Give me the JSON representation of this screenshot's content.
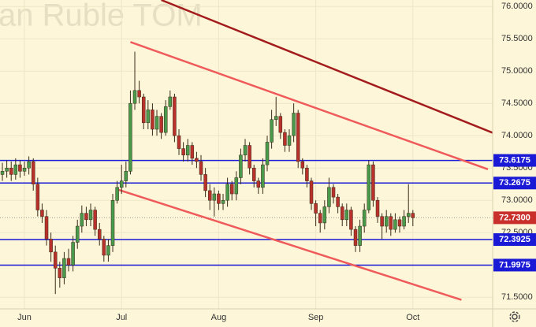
{
  "chart_data": {
    "type": "candlestick",
    "title": "an Ruble TOM",
    "open": [
      73.4,
      73.45,
      73.5,
      73.4,
      73.55,
      73.45,
      73.5,
      73.6,
      73.25,
      72.85,
      72.75,
      72.4,
      72.2,
      71.95,
      71.8,
      72.1,
      72.0,
      72.35,
      72.6,
      72.8,
      72.7,
      72.85,
      72.55,
      72.4,
      72.15,
      72.3,
      73.0,
      73.2,
      73.3,
      73.45,
      74.5,
      74.7,
      74.6,
      74.2,
      74.4,
      74.1,
      74.3,
      74.05,
      74.45,
      74.6,
      74.0,
      73.8,
      73.7,
      73.85,
      73.65,
      73.6,
      73.4,
      73.15,
      73.0,
      73.1,
      72.95,
      73.0,
      73.25,
      73.1,
      73.35,
      73.7,
      73.85,
      73.5,
      73.3,
      73.2,
      73.55,
      73.9,
      74.25,
      74.3,
      74.05,
      73.85,
      74.0,
      74.35,
      73.6,
      73.5,
      73.3,
      72.95,
      72.8,
      72.65,
      72.9,
      73.2,
      73.05,
      72.9,
      72.7,
      72.85,
      72.55,
      72.3,
      72.6,
      72.85,
      73.55,
      73.0,
      72.75,
      72.6,
      72.75,
      72.55,
      72.7,
      72.6,
      72.75,
      72.8
    ],
    "high": [
      73.58,
      73.62,
      73.6,
      73.65,
      73.62,
      73.6,
      73.68,
      73.65,
      73.35,
      72.95,
      72.85,
      72.5,
      72.3,
      72.05,
      72.2,
      72.25,
      72.45,
      72.7,
      72.92,
      72.9,
      72.95,
      72.9,
      72.65,
      72.45,
      72.4,
      73.1,
      73.3,
      73.55,
      73.6,
      74.7,
      75.3,
      74.85,
      74.65,
      74.55,
      74.5,
      74.4,
      74.35,
      74.55,
      74.7,
      74.65,
      74.1,
      73.9,
      73.95,
      73.9,
      73.75,
      73.7,
      73.5,
      73.25,
      73.2,
      73.15,
      73.1,
      73.35,
      73.3,
      73.45,
      73.8,
      73.95,
      73.9,
      73.55,
      73.35,
      73.65,
      74.0,
      74.4,
      74.6,
      74.35,
      74.1,
      74.1,
      74.5,
      74.4,
      73.65,
      73.55,
      73.35,
      73.0,
      72.85,
      73.0,
      73.35,
      73.25,
      73.1,
      72.95,
      72.95,
      72.9,
      72.6,
      72.7,
      72.95,
      73.62,
      73.6,
      73.05,
      72.8,
      72.85,
      72.8,
      72.8,
      72.75,
      72.85,
      73.25,
      72.85
    ],
    "low": [
      73.3,
      73.35,
      73.3,
      73.32,
      73.35,
      73.38,
      73.4,
      73.15,
      72.75,
      72.65,
      72.3,
      72.05,
      71.55,
      71.65,
      71.7,
      71.9,
      71.9,
      72.25,
      72.5,
      72.6,
      72.6,
      72.45,
      72.3,
      72.05,
      72.05,
      72.2,
      72.95,
      73.1,
      73.2,
      73.4,
      74.4,
      74.5,
      74.1,
      74.1,
      74.0,
      74.0,
      73.95,
      74.0,
      74.4,
      73.9,
      73.7,
      73.6,
      73.6,
      73.55,
      73.5,
      73.3,
      73.05,
      72.85,
      72.75,
      72.85,
      72.85,
      72.9,
      73.0,
      73.0,
      73.25,
      73.6,
      73.4,
      73.2,
      73.1,
      73.1,
      73.45,
      73.8,
      74.15,
      73.95,
      73.75,
      73.75,
      73.9,
      73.5,
      73.4,
      73.2,
      72.85,
      72.6,
      72.5,
      72.55,
      72.8,
      72.95,
      72.8,
      72.6,
      72.6,
      72.45,
      72.2,
      72.2,
      72.5,
      72.8,
      72.9,
      72.65,
      72.4,
      72.5,
      72.45,
      72.5,
      72.5,
      72.55,
      72.65,
      72.6
    ],
    "close": [
      73.45,
      73.5,
      73.4,
      73.55,
      73.45,
      73.5,
      73.6,
      73.25,
      72.85,
      72.75,
      72.4,
      72.2,
      71.95,
      71.8,
      72.1,
      72.0,
      72.35,
      72.6,
      72.8,
      72.7,
      72.85,
      72.55,
      72.4,
      72.15,
      72.3,
      73.0,
      73.2,
      73.3,
      73.45,
      74.5,
      74.7,
      74.6,
      74.2,
      74.4,
      74.1,
      74.3,
      74.05,
      74.45,
      74.6,
      74.0,
      73.8,
      73.7,
      73.85,
      73.65,
      73.6,
      73.4,
      73.15,
      73.0,
      73.1,
      72.95,
      73.0,
      73.25,
      73.1,
      73.35,
      73.7,
      73.85,
      73.5,
      73.3,
      73.2,
      73.55,
      73.9,
      74.25,
      74.3,
      74.05,
      73.85,
      74.0,
      74.35,
      73.6,
      73.5,
      73.3,
      72.95,
      72.8,
      72.65,
      72.9,
      73.2,
      73.05,
      72.9,
      72.7,
      72.85,
      72.55,
      72.3,
      72.6,
      72.85,
      73.55,
      73.0,
      72.75,
      72.6,
      72.75,
      72.55,
      72.7,
      72.6,
      72.75,
      72.8,
      72.73
    ],
    "up_color": "#4a9a4c",
    "down_color": "#b8322b",
    "xlim": [
      -0.54,
      111.07
    ],
    "xticks": [
      {
        "value": 5,
        "label": "Jun"
      },
      {
        "value": 27,
        "label": "Jul"
      },
      {
        "value": 49,
        "label": "Aug"
      },
      {
        "value": 71,
        "label": "Sep"
      },
      {
        "value": 93,
        "label": "Oct"
      }
    ],
    "ylim": [
      71.32,
      76.1
    ],
    "yticks": [
      {
        "value": 71.5,
        "label": "71.5000"
      },
      {
        "value": 72.0,
        "label": "72.0000"
      },
      {
        "value": 72.5,
        "label": "72.5000"
      },
      {
        "value": 73.0,
        "label": "73.0000"
      },
      {
        "value": 73.5,
        "label": "73.5000"
      },
      {
        "value": 74.0,
        "label": "74.0000"
      },
      {
        "value": 74.5,
        "label": "74.5000"
      },
      {
        "value": 75.0,
        "label": "75.0000"
      },
      {
        "value": 75.5,
        "label": "75.5000"
      },
      {
        "value": 76.0,
        "label": "76.0000"
      }
    ],
    "grid": true,
    "levels": [
      {
        "value": 73.6175,
        "label": "73.6175",
        "color": "#1a1ad6"
      },
      {
        "value": 73.2675,
        "label": "73.2675",
        "color": "#1a1ad6"
      },
      {
        "value": 72.3925,
        "label": "72.3925",
        "color": "#1a1ad6"
      },
      {
        "value": 71.9975,
        "label": "71.9975",
        "color": "#1a1ad6"
      }
    ],
    "last_price": {
      "value": 72.73,
      "label": "72.7300",
      "color": "#c9302c"
    },
    "trend_lines": [
      {
        "x": [
          36,
          112
        ],
        "y": [
          76.1,
          74.02
        ],
        "color": "#a31c1c"
      },
      {
        "x": [
          29,
          110
        ],
        "y": [
          75.45,
          73.48
        ],
        "color": "#ef5a5a"
      },
      {
        "x": [
          26,
          104
        ],
        "y": [
          73.17,
          71.46
        ],
        "color": "#ef5a5a"
      }
    ]
  }
}
